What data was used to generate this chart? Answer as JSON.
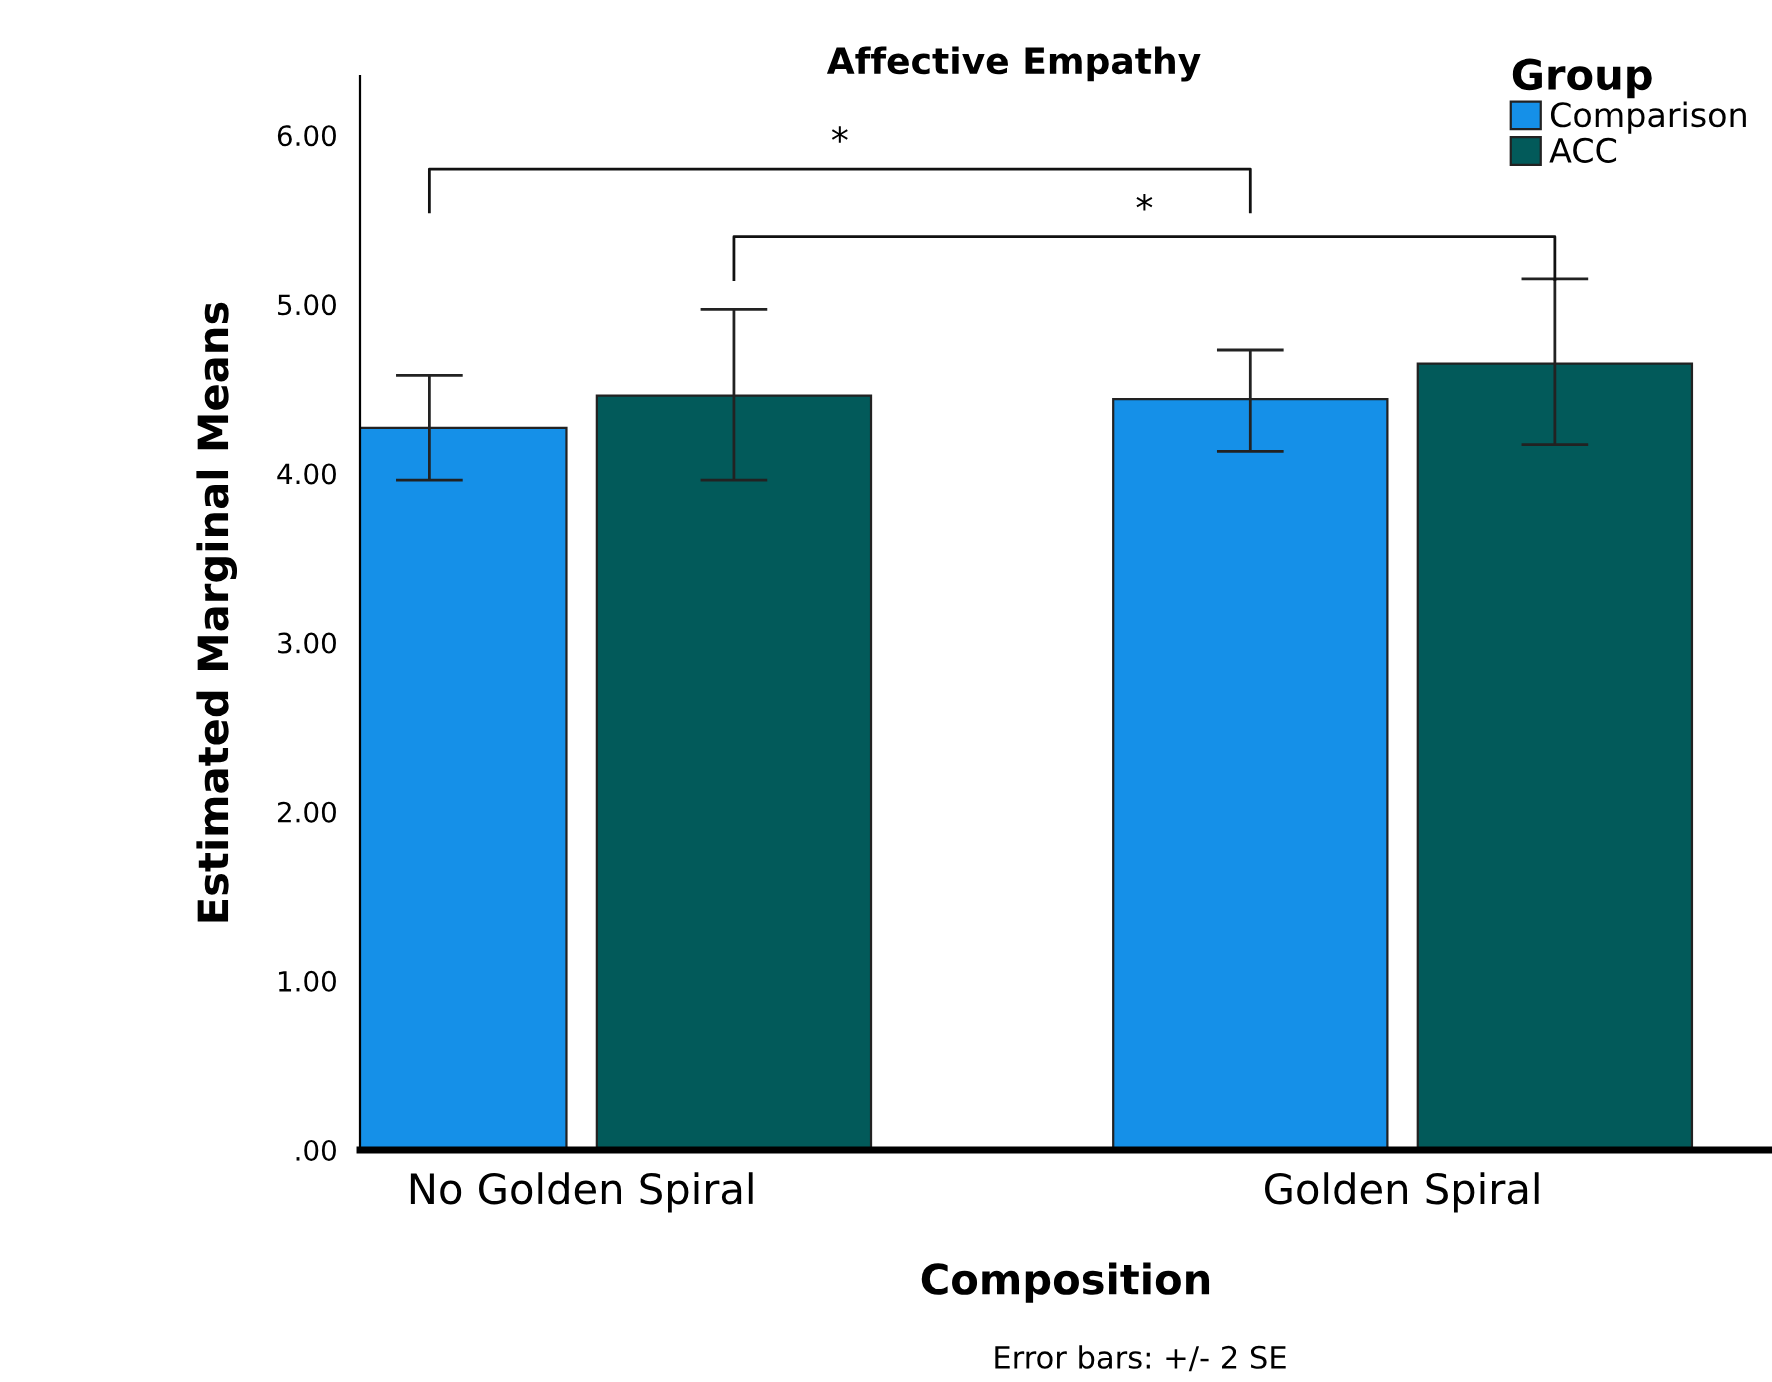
{
  "chart_data": {
    "type": "bar",
    "title": "Affective Empathy",
    "xlabel": "Composition",
    "ylabel": "Estimated Marginal Means",
    "legend_title": "Group",
    "legend": "top right",
    "categories": [
      "No Golden Spiral",
      "Golden Spiral"
    ],
    "series": [
      {
        "name": "Comparison",
        "color": "#1590e8",
        "values": [
          4.27,
          4.44
        ],
        "errors": [
          [
            3.96,
            4.58
          ],
          [
            4.13,
            4.73
          ]
        ]
      },
      {
        "name": "ACC",
        "color": "#025a5a",
        "values": [
          4.46,
          4.65
        ],
        "errors": [
          [
            3.96,
            4.97
          ],
          [
            4.17,
            5.15
          ]
        ]
      }
    ],
    "ylim": [
      0,
      6.35
    ],
    "yticks": [
      {
        "value": 0,
        "label": ".00"
      },
      {
        "value": 1,
        "label": "1.00"
      },
      {
        "value": 2,
        "label": "2.00"
      },
      {
        "value": 3,
        "label": "3.00"
      },
      {
        "value": 4,
        "label": "4.00"
      },
      {
        "value": 5,
        "label": "5.00"
      },
      {
        "value": 6,
        "label": "6.00"
      }
    ],
    "grid": false,
    "annotations": [
      "*",
      "*",
      "Error bars: +/- 2 SE"
    ]
  }
}
